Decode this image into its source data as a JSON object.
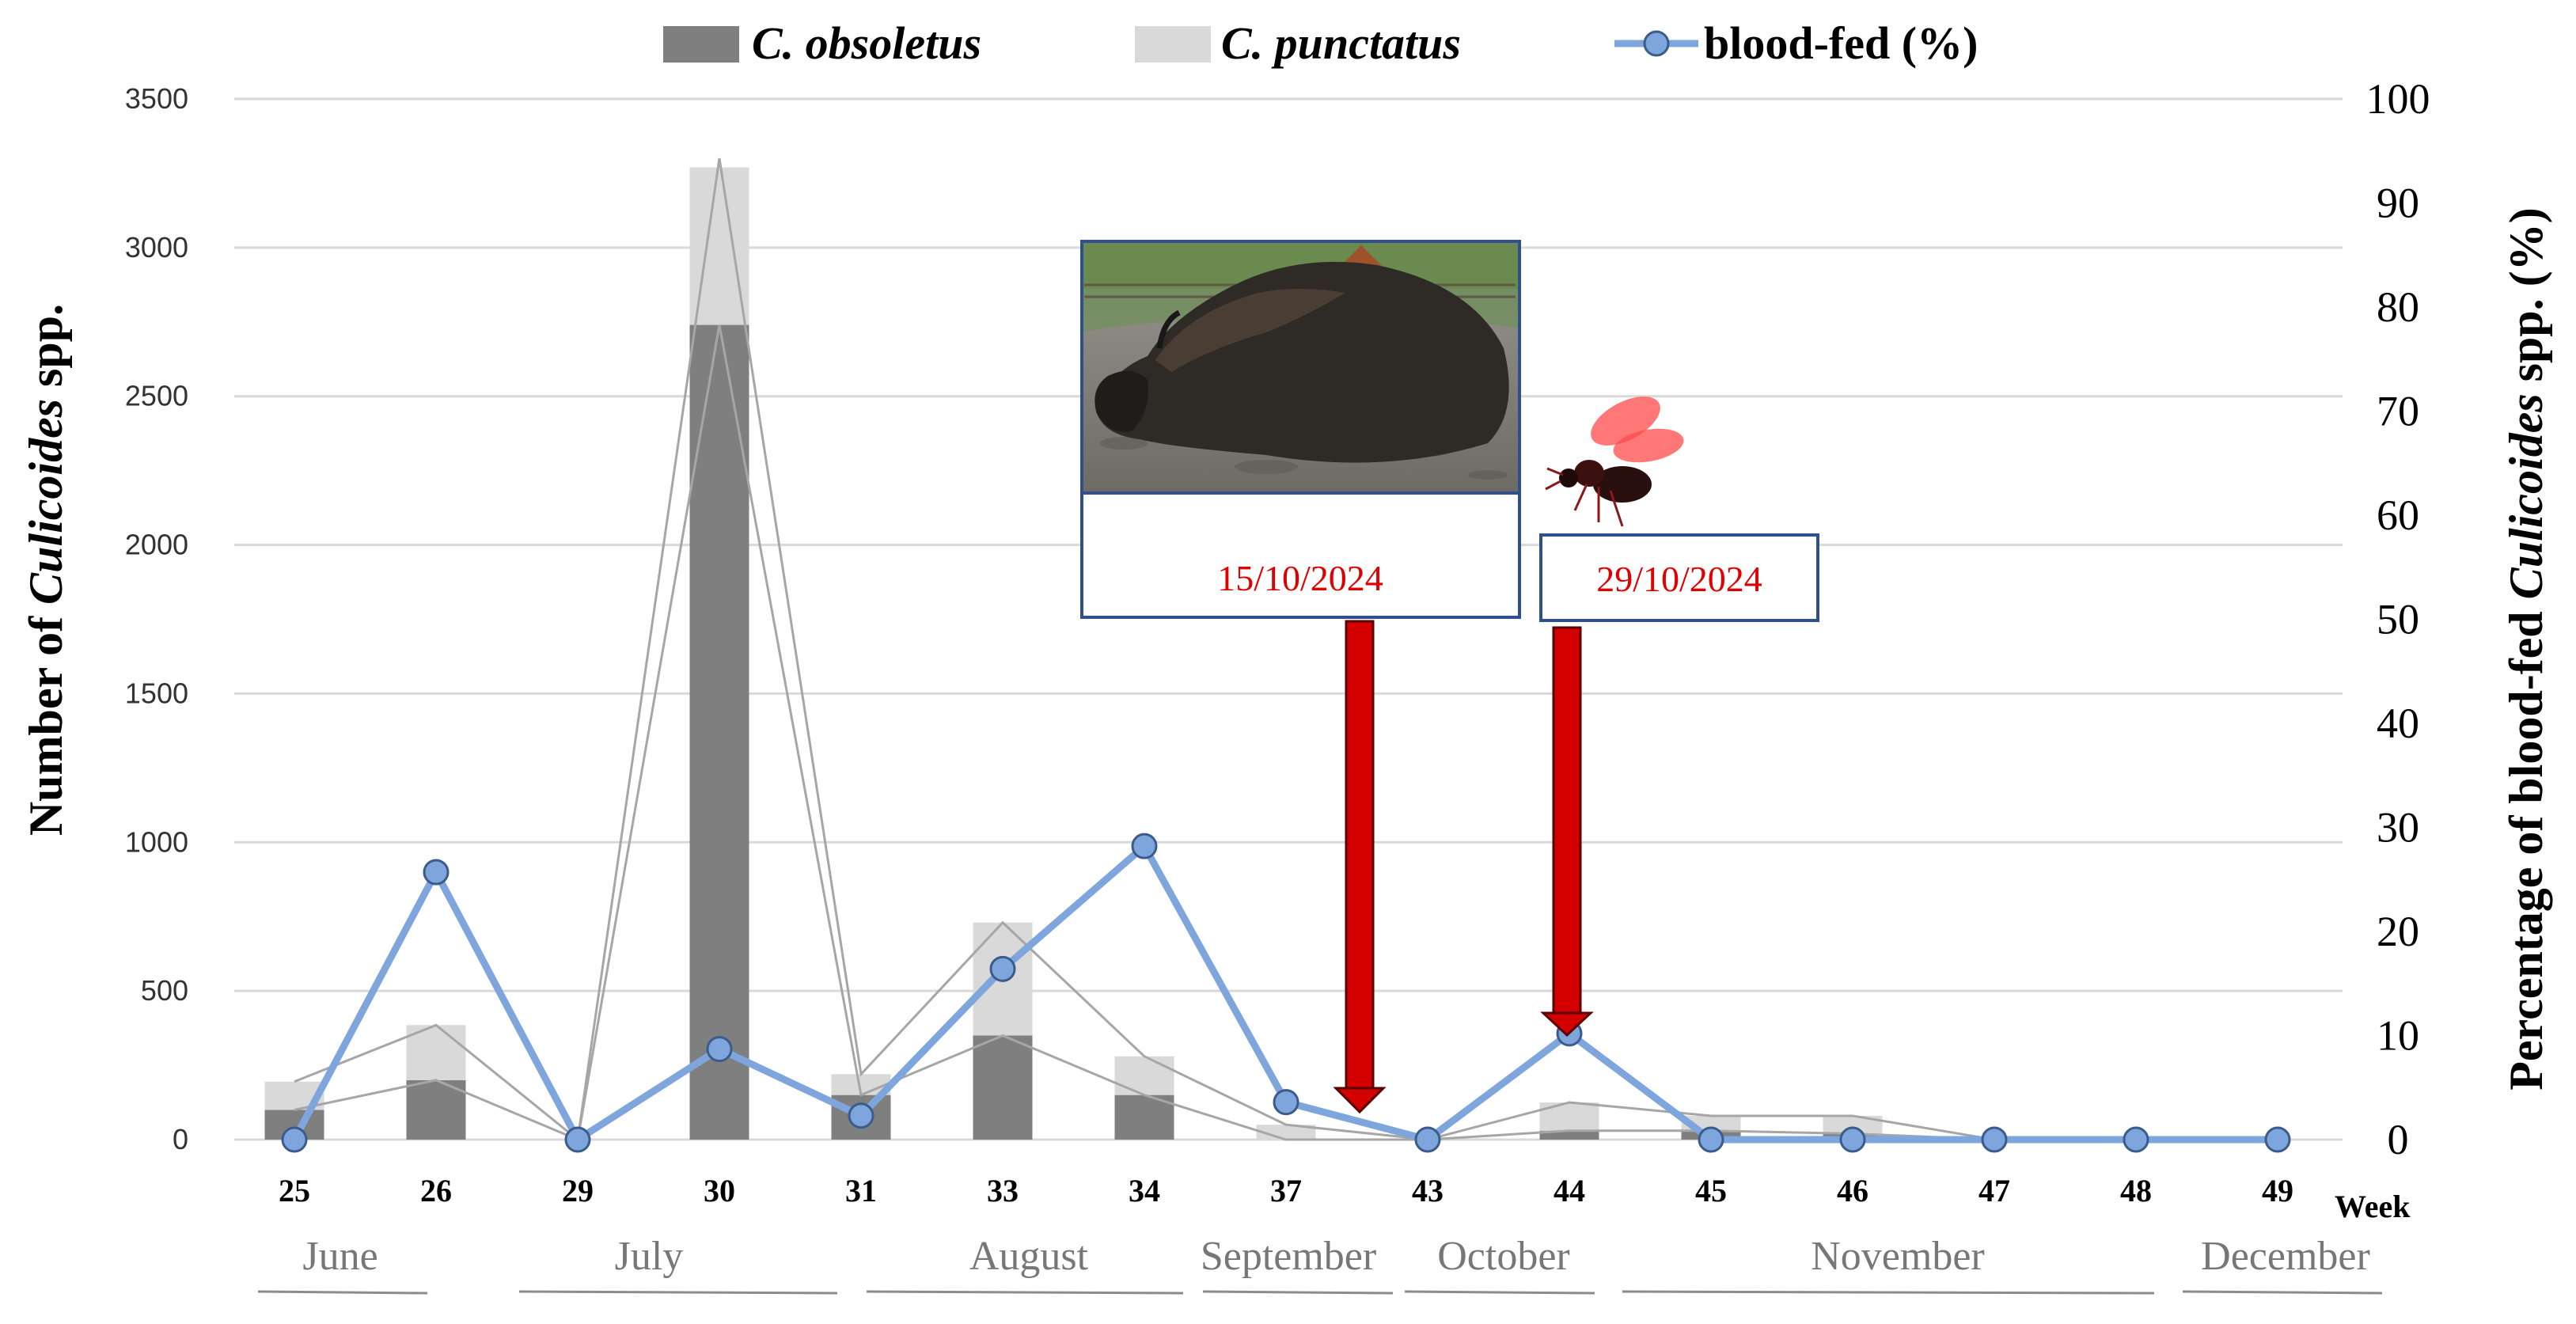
{
  "chart_data": {
    "type": "bar",
    "stacked": true,
    "categories": [
      "25",
      "26",
      "29",
      "30",
      "31",
      "33",
      "34",
      "37",
      "43",
      "44",
      "45",
      "46",
      "47",
      "48",
      "49"
    ],
    "series": [
      {
        "name": "C. obsoletus",
        "kind": "bar",
        "color": "#7f7f7f",
        "values": [
          100,
          200,
          0,
          2740,
          150,
          350,
          150,
          0,
          0,
          30,
          30,
          20,
          0,
          0,
          0
        ]
      },
      {
        "name": "C. punctatus",
        "kind": "bar",
        "color": "#d9d9d9",
        "values": [
          95,
          185,
          0,
          560,
          70,
          380,
          130,
          50,
          0,
          95,
          50,
          60,
          0,
          0,
          0
        ]
      },
      {
        "name": "blood-fed (%)",
        "kind": "line",
        "axis": "right",
        "color": "#7fa6dc",
        "values": [
          0,
          25.7,
          0,
          8.7,
          2.3,
          16.4,
          28.2,
          3.6,
          0,
          10.2,
          0,
          0,
          0,
          0,
          0
        ]
      }
    ],
    "bar_clip_max": 3270,
    "legend": [
      {
        "label": "C. obsoletus",
        "italic": true
      },
      {
        "label": "C. punctatus",
        "italic": true
      },
      {
        "label": "blood-fed (%)",
        "italic": false
      }
    ],
    "ylabel_left": {
      "prefix": "Number of ",
      "italic": "Culicoides",
      "suffix": " spp."
    },
    "ylabel_right": {
      "prefix": "Percentage of blood-fed ",
      "italic": "Culicoides",
      "suffix": " spp. (%)"
    },
    "xlabel": "Week",
    "ylim_left": [
      0,
      3500
    ],
    "yticks_left": [
      "0",
      "500",
      "1000",
      "1500",
      "2000",
      "2500",
      "3000",
      "3500"
    ],
    "ylim_right": [
      0,
      100
    ],
    "yticks_right": [
      "0",
      "10",
      "20",
      "30",
      "40",
      "50",
      "60",
      "70",
      "80",
      "90",
      "100"
    ],
    "months": [
      "June",
      "July",
      "August",
      "September",
      "October",
      "November",
      "December"
    ],
    "annotations": [
      {
        "date": "15/10/2024",
        "image": "bison lying on ground",
        "arrow_to": "between weeks 37 and 43"
      },
      {
        "date": "29/10/2024",
        "image": "biting midge",
        "arrow_to": "week 44"
      }
    ],
    "grid": true
  }
}
